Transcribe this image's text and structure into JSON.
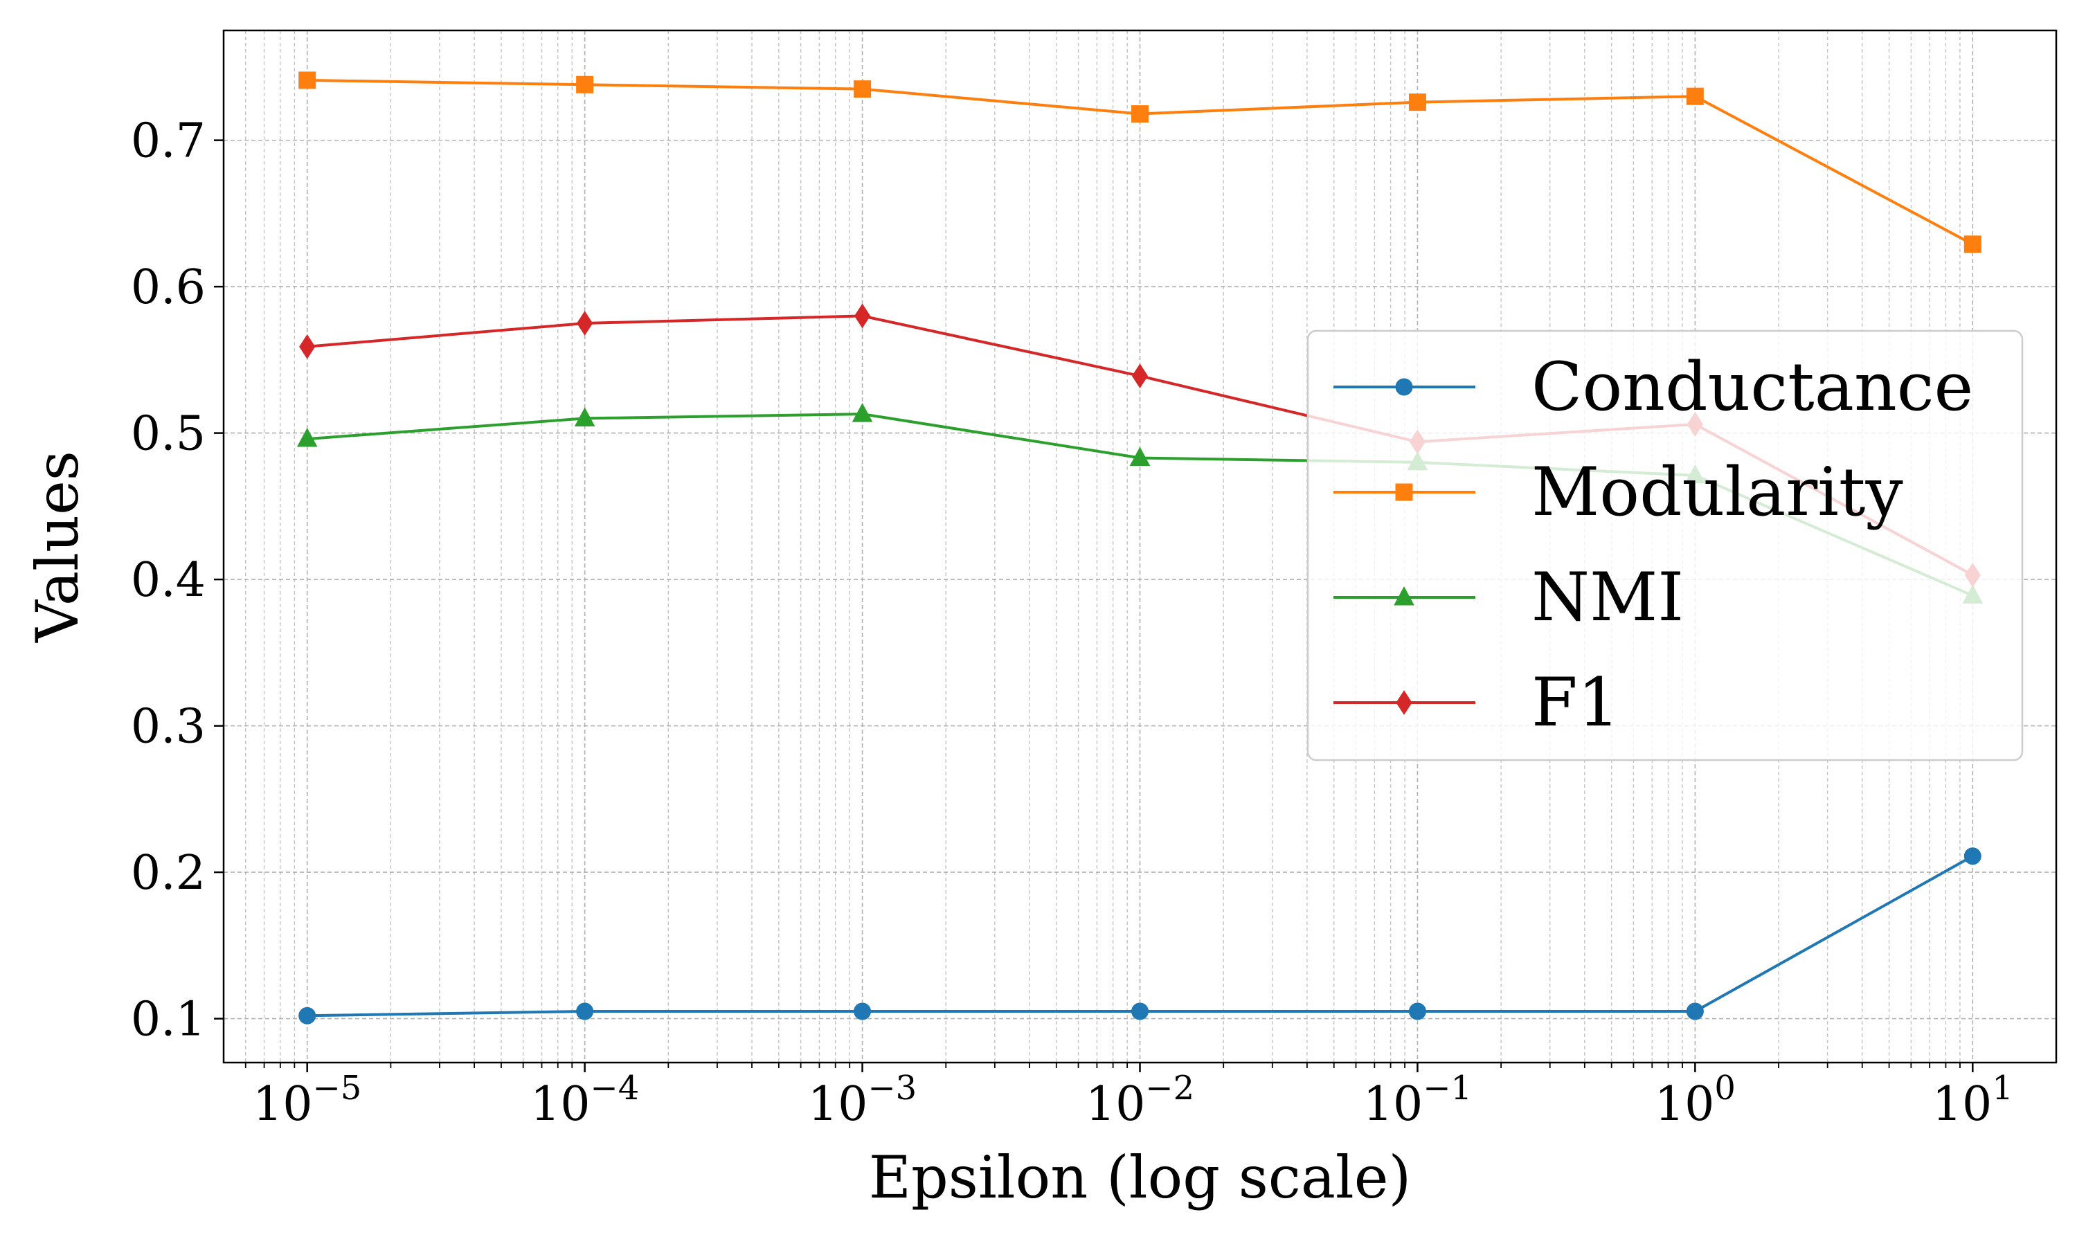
{
  "chart_data": {
    "type": "line",
    "xlabel": "Epsilon (log scale)",
    "ylabel": "Values",
    "x_scale": "log",
    "x": [
      1e-05,
      0.0001,
      0.001,
      0.01,
      0.1,
      1,
      10
    ],
    "xlim": [
      5e-06,
      20
    ],
    "ylim": [
      0.07,
      0.775
    ],
    "x_ticks": [
      {
        "base": "10",
        "exp": "−5",
        "value": 1e-05
      },
      {
        "base": "10",
        "exp": "−4",
        "value": 0.0001
      },
      {
        "base": "10",
        "exp": "−3",
        "value": 0.001
      },
      {
        "base": "10",
        "exp": "−2",
        "value": 0.01
      },
      {
        "base": "10",
        "exp": "−1",
        "value": 0.1
      },
      {
        "base": "10",
        "exp": "0",
        "value": 1
      },
      {
        "base": "10",
        "exp": "1",
        "value": 10
      }
    ],
    "y_ticks": [
      {
        "label": "0.1",
        "value": 0.1
      },
      {
        "label": "0.2",
        "value": 0.2
      },
      {
        "label": "0.3",
        "value": 0.3
      },
      {
        "label": "0.4",
        "value": 0.4
      },
      {
        "label": "0.5",
        "value": 0.5
      },
      {
        "label": "0.6",
        "value": 0.6
      },
      {
        "label": "0.7",
        "value": 0.7
      }
    ],
    "grid": true,
    "grid_minor": true,
    "legend_position": "center-right",
    "series": [
      {
        "name": "Conductance",
        "color": "#1f77b4",
        "marker": "circle",
        "values": [
          0.102,
          0.105,
          0.105,
          0.105,
          0.105,
          0.105,
          0.211
        ]
      },
      {
        "name": "Modularity",
        "color": "#ff7f0e",
        "marker": "square",
        "values": [
          0.741,
          0.738,
          0.735,
          0.718,
          0.726,
          0.73,
          0.629
        ]
      },
      {
        "name": "NMI",
        "color": "#2ca02c",
        "marker": "triangle",
        "values": [
          0.496,
          0.51,
          0.513,
          0.483,
          0.48,
          0.471,
          0.389
        ]
      },
      {
        "name": "F1",
        "color": "#d62728",
        "marker": "diamond",
        "values": [
          0.559,
          0.575,
          0.58,
          0.539,
          0.494,
          0.506,
          0.403
        ]
      }
    ]
  }
}
